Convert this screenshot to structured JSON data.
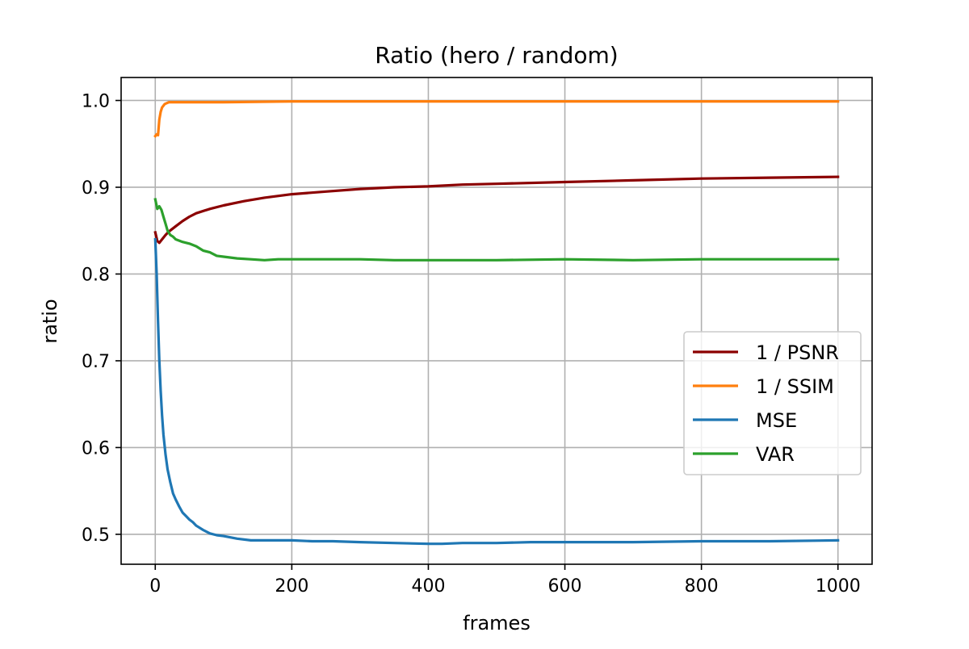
{
  "chart_data": {
    "type": "line",
    "title": "Ratio (hero / random)",
    "xlabel": "frames",
    "ylabel": "ratio",
    "xlim": [
      -50,
      1050
    ],
    "ylim": [
      0.4655,
      1.0265
    ],
    "xticks": [
      0,
      200,
      400,
      600,
      800,
      1000
    ],
    "yticks": [
      0.5,
      0.6,
      0.7,
      0.8,
      0.9,
      1.0
    ],
    "xtick_labels": [
      "0",
      "200",
      "400",
      "600",
      "800",
      "1000"
    ],
    "ytick_labels": [
      "0.5",
      "0.6",
      "0.7",
      "0.8",
      "0.9",
      "1.0"
    ],
    "grid": true,
    "legend_position": "center-right",
    "series": [
      {
        "name": "1 / PSNR",
        "color": "#8b0000",
        "x": [
          0,
          3,
          6,
          10,
          15,
          20,
          30,
          40,
          50,
          60,
          80,
          100,
          130,
          160,
          200,
          250,
          300,
          350,
          400,
          450,
          500,
          600,
          700,
          800,
          900,
          1000
        ],
        "y": [
          0.848,
          0.838,
          0.836,
          0.84,
          0.845,
          0.849,
          0.855,
          0.861,
          0.866,
          0.87,
          0.875,
          0.879,
          0.884,
          0.888,
          0.892,
          0.895,
          0.898,
          0.9,
          0.901,
          0.903,
          0.904,
          0.906,
          0.908,
          0.91,
          0.911,
          0.912
        ]
      },
      {
        "name": "1 / SSIM",
        "color": "#ff7f0e",
        "x": [
          0,
          2,
          4,
          6,
          8,
          10,
          14,
          20,
          30,
          50,
          100,
          200,
          400,
          600,
          800,
          1000
        ],
        "y": [
          0.959,
          0.961,
          0.96,
          0.978,
          0.987,
          0.992,
          0.996,
          0.998,
          0.998,
          0.998,
          0.998,
          0.999,
          0.999,
          0.999,
          0.999,
          0.999
        ]
      },
      {
        "name": "MSE",
        "color": "#1f77b4",
        "x": [
          0,
          2,
          4,
          6,
          8,
          10,
          12,
          15,
          18,
          22,
          26,
          30,
          35,
          40,
          45,
          50,
          55,
          60,
          70,
          80,
          90,
          100,
          120,
          140,
          160,
          180,
          200,
          230,
          260,
          300,
          350,
          400,
          420,
          450,
          500,
          550,
          600,
          700,
          800,
          900,
          1000
        ],
        "y": [
          0.84,
          0.8,
          0.745,
          0.7,
          0.665,
          0.637,
          0.615,
          0.592,
          0.575,
          0.56,
          0.547,
          0.54,
          0.532,
          0.525,
          0.521,
          0.517,
          0.514,
          0.51,
          0.505,
          0.501,
          0.499,
          0.498,
          0.495,
          0.493,
          0.493,
          0.493,
          0.493,
          0.492,
          0.492,
          0.491,
          0.49,
          0.489,
          0.489,
          0.49,
          0.49,
          0.491,
          0.491,
          0.491,
          0.492,
          0.492,
          0.493
        ]
      },
      {
        "name": "VAR",
        "color": "#2ca02c",
        "x": [
          0,
          3,
          6,
          9,
          12,
          15,
          18,
          22,
          26,
          30,
          40,
          50,
          60,
          70,
          80,
          90,
          100,
          120,
          140,
          160,
          180,
          200,
          250,
          300,
          350,
          400,
          500,
          600,
          700,
          800,
          900,
          1000
        ],
        "y": [
          0.886,
          0.875,
          0.878,
          0.874,
          0.866,
          0.858,
          0.85,
          0.845,
          0.843,
          0.84,
          0.837,
          0.835,
          0.832,
          0.827,
          0.825,
          0.821,
          0.82,
          0.818,
          0.817,
          0.816,
          0.817,
          0.817,
          0.817,
          0.817,
          0.816,
          0.816,
          0.816,
          0.817,
          0.816,
          0.817,
          0.817,
          0.817
        ]
      }
    ]
  }
}
